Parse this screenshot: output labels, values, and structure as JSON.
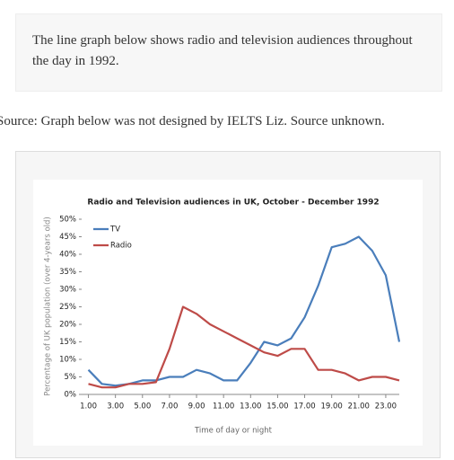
{
  "prompt": "The line graph below shows radio and television audiences throughout the day in 1992.",
  "source": "Source: Graph below was not designed by IELTS Liz. Source unknown.",
  "chart_data": {
    "type": "line",
    "title": "Radio and Television audiences in UK, October - December 1992",
    "x_label": "Time of day or night",
    "y_label": "Percentage of UK population (over 4-years old)",
    "x": [
      1,
      2,
      3,
      4,
      5,
      6,
      7,
      8,
      9,
      10,
      11,
      12,
      13,
      14,
      15,
      16,
      17,
      18,
      19,
      20,
      21,
      22,
      23,
      24
    ],
    "series": [
      {
        "name": "TV",
        "color": "#4a7ebb",
        "values": [
          7,
          3,
          2.5,
          3,
          4,
          4,
          5,
          5,
          7,
          6,
          4,
          4,
          9,
          15,
          14,
          16,
          22,
          31,
          42,
          43,
          45,
          41,
          34,
          15
        ]
      },
      {
        "name": "Radio",
        "color": "#be4b48",
        "values": [
          3,
          2,
          2,
          3,
          3,
          3.5,
          13,
          25,
          23,
          20,
          18,
          16,
          14,
          12,
          11,
          13,
          13,
          7,
          7,
          6,
          4,
          5,
          5,
          4
        ]
      }
    ],
    "xlim": [
      0.5,
      24
    ],
    "xticks": [
      {
        "value": 1,
        "label": "1.00"
      },
      {
        "value": 3,
        "label": "3.00"
      },
      {
        "value": 5,
        "label": "5.00"
      },
      {
        "value": 7,
        "label": "7.00"
      },
      {
        "value": 9,
        "label": "9.00"
      },
      {
        "value": 11,
        "label": "11.00"
      },
      {
        "value": 13,
        "label": "13.00"
      },
      {
        "value": 15,
        "label": "15.00"
      },
      {
        "value": 17,
        "label": "17.00"
      },
      {
        "value": 19,
        "label": "19.00"
      },
      {
        "value": 21,
        "label": "21.00"
      },
      {
        "value": 23,
        "label": "23.00"
      }
    ],
    "ylim": [
      0,
      50
    ],
    "yticks": [
      {
        "value": 0,
        "label": "0%"
      },
      {
        "value": 5,
        "label": "5%"
      },
      {
        "value": 10,
        "label": "10%"
      },
      {
        "value": 15,
        "label": "15%"
      },
      {
        "value": 20,
        "label": "20%"
      },
      {
        "value": 25,
        "label": "25%"
      },
      {
        "value": 30,
        "label": "30%"
      },
      {
        "value": 35,
        "label": "35%"
      },
      {
        "value": 40,
        "label": "40%"
      },
      {
        "value": 45,
        "label": "45%"
      },
      {
        "value": 50,
        "label": "50%"
      }
    ],
    "grid": false,
    "legend": "top-left"
  }
}
